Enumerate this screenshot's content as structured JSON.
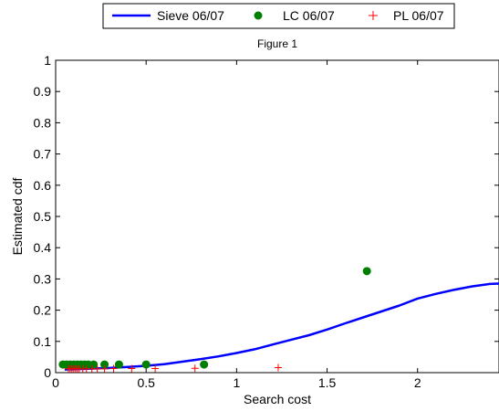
{
  "chart_data": {
    "type": "scatter",
    "title": "Figure 1",
    "xlabel": "Search cost",
    "ylabel": "Estimated cdf",
    "xlim": [
      0,
      2.45
    ],
    "ylim": [
      0,
      1
    ],
    "x_ticks": [
      0,
      0.5,
      1,
      1.5,
      2
    ],
    "x_tick_labels": [
      "0",
      "0.5",
      "1",
      "1.5",
      "2"
    ],
    "y_ticks": [
      0,
      0.1,
      0.2,
      0.3,
      0.4,
      0.5,
      0.6,
      0.7,
      0.8,
      0.9,
      1
    ],
    "y_tick_labels": [
      "0",
      "0.1",
      "0.2",
      "0.3",
      "0.4",
      "0.5",
      "0.6",
      "0.7",
      "0.8",
      "0.9",
      "1"
    ],
    "grid": false,
    "legend_position": "top-center",
    "series": [
      {
        "name": "Sieve 06/07",
        "kind": "line",
        "color": "#0000ff",
        "x": [
          0.05,
          0.2,
          0.3,
          0.4,
          0.5,
          0.6,
          0.7,
          0.8,
          0.9,
          1.0,
          1.1,
          1.2,
          1.3,
          1.4,
          1.5,
          1.6,
          1.7,
          1.8,
          1.9,
          2.0,
          2.1,
          2.2,
          2.3,
          2.4,
          2.45
        ],
        "y": [
          0.01,
          0.013,
          0.015,
          0.018,
          0.022,
          0.027,
          0.035,
          0.043,
          0.052,
          0.063,
          0.075,
          0.09,
          0.105,
          0.12,
          0.138,
          0.158,
          0.177,
          0.196,
          0.215,
          0.237,
          0.252,
          0.265,
          0.276,
          0.284,
          0.285
        ]
      },
      {
        "name": "LC 06/07",
        "kind": "marker-circle",
        "color": "#007f00",
        "x": [
          0.04,
          0.06,
          0.08,
          0.1,
          0.12,
          0.14,
          0.16,
          0.18,
          0.21,
          0.27,
          0.35,
          0.5,
          0.82,
          1.72
        ],
        "y": [
          0.026,
          0.026,
          0.026,
          0.026,
          0.026,
          0.026,
          0.026,
          0.026,
          0.026,
          0.026,
          0.026,
          0.026,
          0.026,
          0.325
        ]
      },
      {
        "name": "PL 06/07",
        "kind": "marker-plus",
        "color": "#ff0000",
        "x": [
          0.07,
          0.08,
          0.09,
          0.1,
          0.11,
          0.12,
          0.13,
          0.15,
          0.17,
          0.2,
          0.23,
          0.27,
          0.32,
          0.42,
          0.55,
          0.77,
          1.23
        ],
        "y": [
          0.012,
          0.012,
          0.012,
          0.012,
          0.012,
          0.012,
          0.012,
          0.012,
          0.012,
          0.012,
          0.012,
          0.012,
          0.013,
          0.013,
          0.013,
          0.014,
          0.016
        ]
      }
    ]
  }
}
